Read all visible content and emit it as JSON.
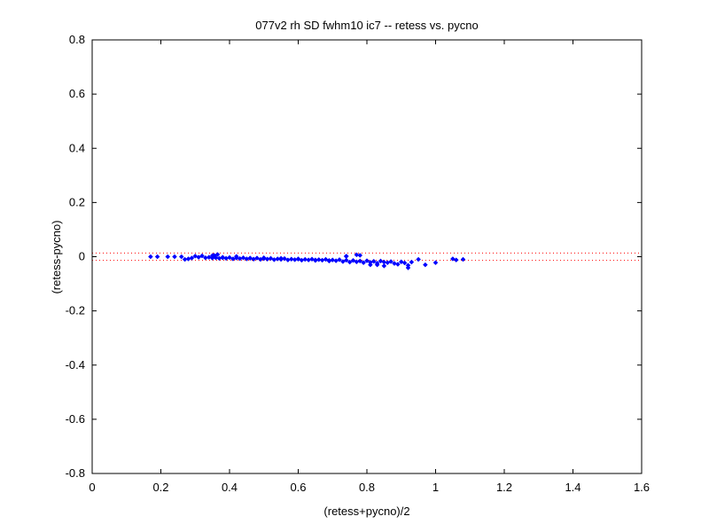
{
  "chart_data": {
    "type": "scatter",
    "title": "077v2 rh SD fwhm10 ic7 -- retess vs. pycno",
    "xlabel": "(retess+pycno)/2",
    "ylabel": "(retess-pycno)",
    "xlim": [
      0,
      1.6
    ],
    "ylim": [
      -0.8,
      0.8
    ],
    "xticks": [
      "0",
      "0.2",
      "0.4",
      "0.6",
      "0.8",
      "1",
      "1.2",
      "1.4",
      "1.6"
    ],
    "yticks": [
      "0.8",
      "0.6",
      "0.4",
      "0.2",
      "0",
      "-0.2",
      "-0.4",
      "-0.6",
      "-0.8"
    ],
    "grid": false,
    "reference_lines": [
      0.0136,
      -0.0136
    ],
    "colors": {
      "points": "#0000ff",
      "reference_lines": "#ff0000",
      "axes": "#000000"
    },
    "series": [
      {
        "x": [
          0.17,
          0.19,
          0.22,
          0.24,
          0.26,
          0.27,
          0.28,
          0.29,
          0.3,
          0.31,
          0.32,
          0.33,
          0.34,
          0.35,
          0.355,
          0.36,
          0.365,
          0.37,
          0.38,
          0.39,
          0.4,
          0.41,
          0.42,
          0.43,
          0.44,
          0.45,
          0.46,
          0.47,
          0.48,
          0.49,
          0.5,
          0.51,
          0.52,
          0.53,
          0.54,
          0.55,
          0.56,
          0.57,
          0.58,
          0.59,
          0.6,
          0.61,
          0.62,
          0.63,
          0.64,
          0.65,
          0.66,
          0.67,
          0.68,
          0.69,
          0.7,
          0.71,
          0.72,
          0.73,
          0.74,
          0.75,
          0.76,
          0.77,
          0.78,
          0.79,
          0.8,
          0.81,
          0.82,
          0.83,
          0.84,
          0.85,
          0.86,
          0.87,
          0.88,
          0.89,
          0.9,
          0.91,
          0.92,
          0.93,
          0.95,
          0.97,
          1.0,
          1.05,
          1.06,
          1.08,
          0.35,
          0.38,
          0.42,
          0.46,
          0.5,
          0.55,
          0.6,
          0.65,
          0.69,
          0.74,
          0.77,
          0.81,
          0.85,
          0.92,
          0.74,
          0.78,
          0.83
        ],
        "y": [
          0.0,
          0.0,
          0.0,
          0.0,
          0.0,
          -0.01,
          -0.008,
          -0.005,
          0.002,
          -0.002,
          0.003,
          -0.004,
          -0.002,
          -0.005,
          0.005,
          -0.004,
          0.008,
          -0.006,
          -0.002,
          -0.006,
          -0.003,
          -0.008,
          -0.005,
          -0.007,
          -0.004,
          -0.008,
          -0.006,
          -0.009,
          -0.005,
          -0.01,
          -0.007,
          -0.009,
          -0.006,
          -0.011,
          -0.008,
          -0.01,
          -0.007,
          -0.012,
          -0.009,
          -0.011,
          -0.008,
          -0.013,
          -0.01,
          -0.012,
          -0.009,
          -0.014,
          -0.011,
          -0.013,
          -0.01,
          -0.016,
          -0.012,
          -0.015,
          -0.011,
          -0.018,
          -0.013,
          -0.02,
          -0.014,
          -0.019,
          -0.016,
          -0.022,
          -0.015,
          -0.021,
          -0.017,
          -0.024,
          -0.016,
          -0.02,
          -0.022,
          -0.018,
          -0.025,
          -0.028,
          -0.019,
          -0.023,
          -0.032,
          -0.02,
          -0.01,
          -0.03,
          -0.022,
          -0.008,
          -0.012,
          -0.01,
          0.004,
          -0.004,
          0.001,
          -0.005,
          -0.004,
          -0.006,
          -0.009,
          -0.012,
          -0.014,
          0.002,
          0.007,
          -0.03,
          -0.034,
          -0.041,
          0.001,
          0.005,
          -0.03
        ]
      }
    ]
  }
}
